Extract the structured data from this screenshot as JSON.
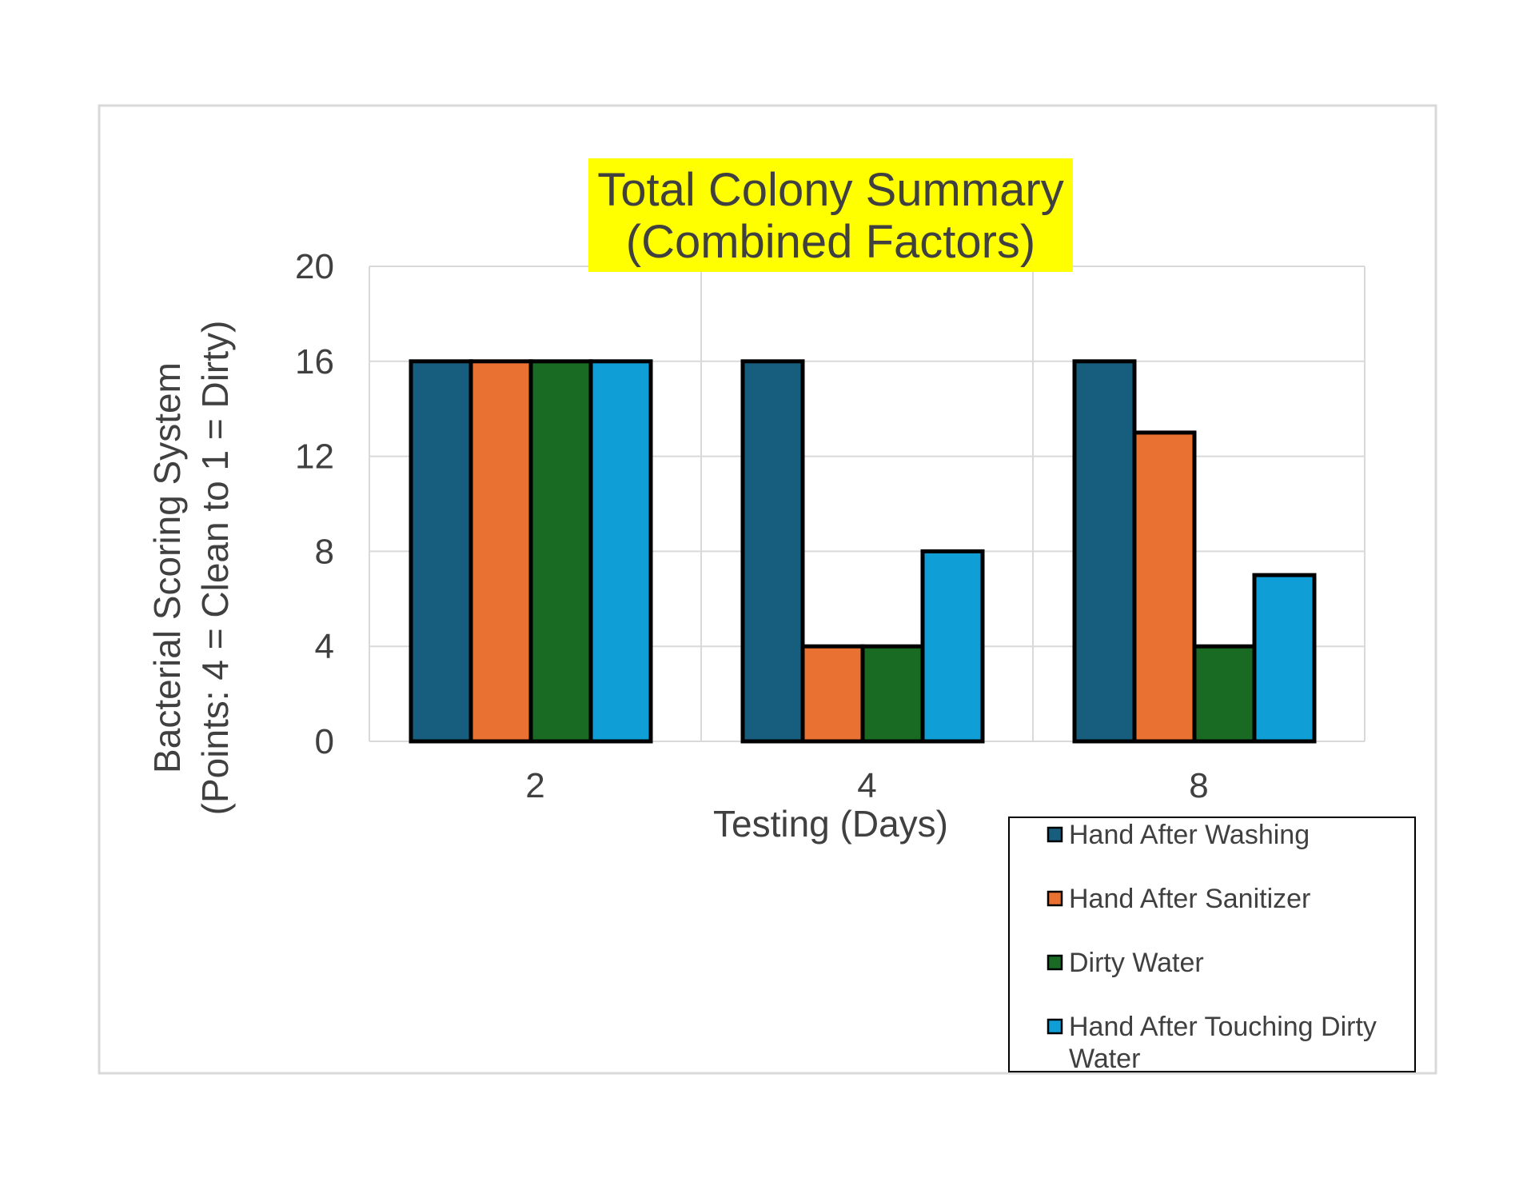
{
  "chart_data": {
    "type": "bar",
    "title_lines": [
      "Total Colony Summary",
      "(Combined Factors)"
    ],
    "title_highlight": "#ffff00",
    "xlabel": "Testing (Days)",
    "ylabel_lines": [
      "Bacterial Scoring System",
      "(Points: 4 = Clean to 1 = Dirty)"
    ],
    "categories": [
      "2",
      "4",
      "8"
    ],
    "ylim": [
      0,
      20
    ],
    "yticks": [
      "0",
      "4",
      "8",
      "12",
      "16",
      "20"
    ],
    "grid": true,
    "legend_position": "bottom-right",
    "series": [
      {
        "name": "Hand After Washing",
        "color": "#175e7e",
        "values": [
          16,
          16,
          16
        ]
      },
      {
        "name": "Hand After Sanitizer",
        "color": "#e97132",
        "values": [
          16,
          4,
          13
        ]
      },
      {
        "name": "Dirty Water",
        "color": "#196b24",
        "values": [
          16,
          4,
          4
        ]
      },
      {
        "name": "Hand After Touching Dirty Water",
        "name_lines": [
          "Hand After Touching Dirty",
          "Water"
        ],
        "color": "#0f9ed5",
        "values": [
          16,
          8,
          7
        ]
      }
    ]
  }
}
